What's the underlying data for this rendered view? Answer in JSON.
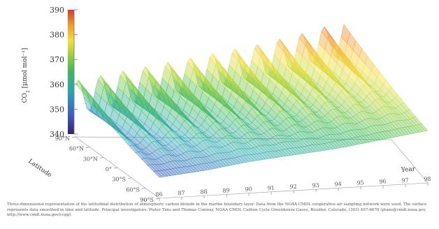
{
  "chart_data": {
    "type": "surface",
    "zlabel": "CO",
    "zlabel_sub": "2",
    "zlabel_unit": " [μmol mol⁻¹]",
    "zlim": [
      340,
      390
    ],
    "z_ticks": [
      340,
      350,
      360,
      370,
      380,
      390
    ],
    "latitude_ticks": [
      "90°N",
      "60°N",
      "30°N",
      "0°",
      "30°S",
      "60°S",
      "90°S"
    ],
    "latitude_axis_label": "Latitude",
    "time_ticks": [
      "86",
      "87",
      "88",
      "89",
      "90",
      "91",
      "92",
      "93",
      "94",
      "95",
      "96",
      "97",
      "98"
    ],
    "time_axis_label": "Year",
    "series_low_z": [
      {
        "year": 1986,
        "z_south": 346,
        "z_north": 355
      },
      {
        "year": 1988,
        "z_south": 348,
        "z_north": 358
      },
      {
        "year": 1990,
        "z_south": 351,
        "z_north": 361
      },
      {
        "year": 1992,
        "z_south": 353,
        "z_north": 364
      },
      {
        "year": 1994,
        "z_south": 355,
        "z_north": 367
      },
      {
        "year": 1996,
        "z_south": 358,
        "z_north": 371
      },
      {
        "year": 1998,
        "z_south": 361,
        "z_north": 376
      }
    ],
    "seasonal_amplitude_north": 8,
    "colorbar": [
      "#5b2a8c",
      "#3c5cc4",
      "#2aa8b0",
      "#3cb85a",
      "#a8d238",
      "#f2e03a",
      "#f29a2a",
      "#d23a2a"
    ]
  },
  "caption": "Three-dimensional representation of the latitudinal distribution of atmospheric carbon dioxide in the marine boundary layer. Data from the NOAA CMDL cooperative air sampling network were used. The surface represents data smoothed in time and latitude. Principal investigators: Pieter Tans and Thomas Conway, NOAA CMDL Carbon Cycle Greenhouse Gases, Boulder, Colorado, (303) 497-6678 (ptans@cmdl.noaa.gov, http://www.cmdl.noaa.gov/ccgg)."
}
